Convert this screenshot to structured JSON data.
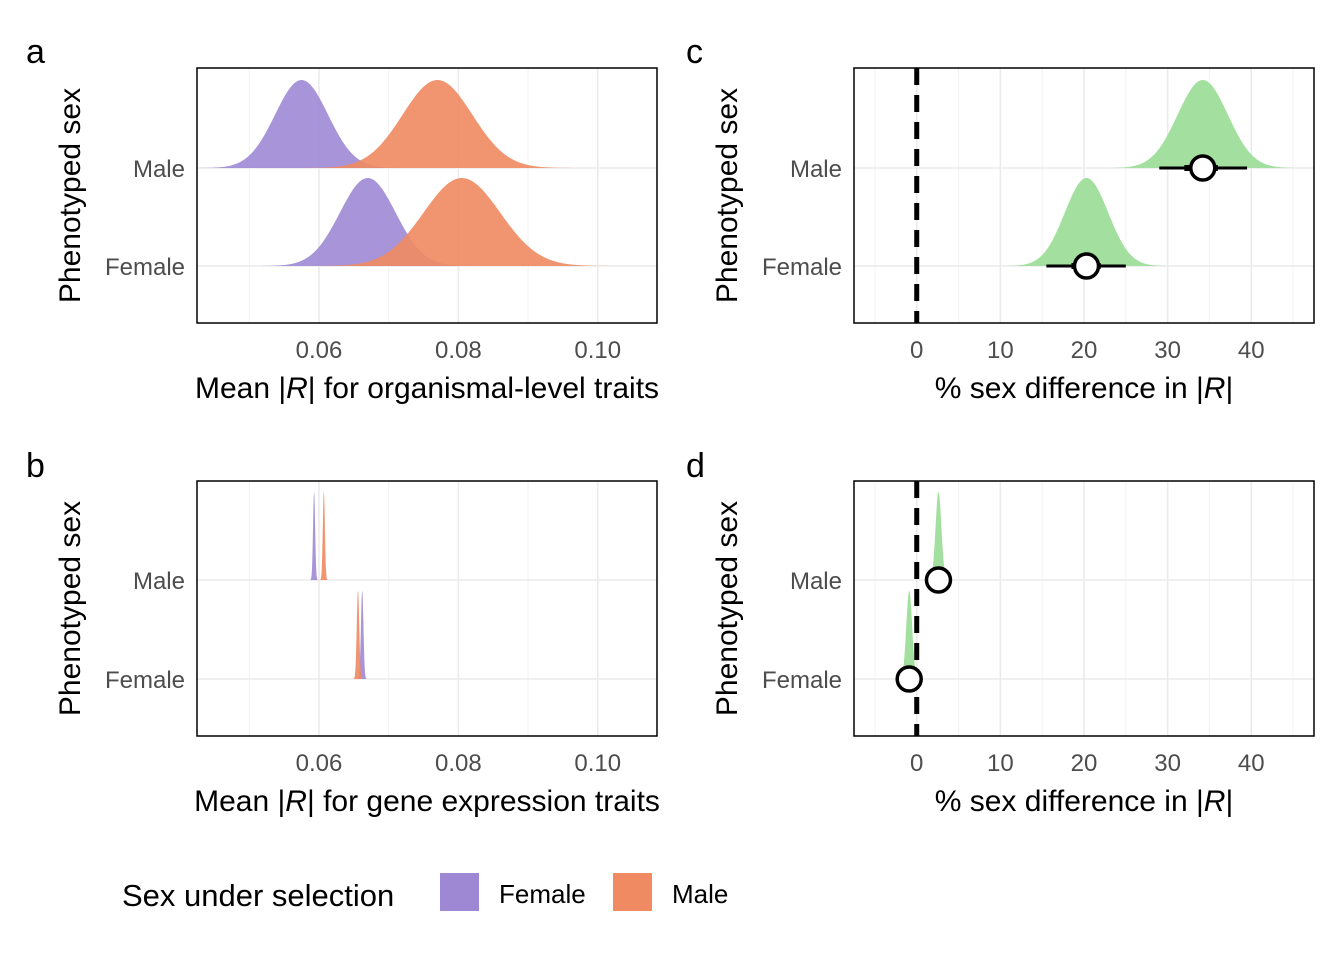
{
  "figure": {
    "legend": {
      "title": "Sex under selection",
      "items": [
        {
          "label": "Female",
          "color": "#9e88d4"
        },
        {
          "label": "Male",
          "color": "#f08a62"
        }
      ]
    }
  },
  "chart_data": [
    {
      "panel": "a",
      "type": "density",
      "ylabel": "Phenotyped sex",
      "xlabel_parts": [
        "Mean |",
        "R",
        "| for organismal-level traits"
      ],
      "xlim": [
        0.0425,
        0.1085
      ],
      "xticks": [
        0.06,
        0.08,
        0.1
      ],
      "xtick_labels": [
        "0.06",
        "0.08",
        "0.10"
      ],
      "categories": [
        "Male",
        "Female"
      ],
      "series": [
        {
          "name": "Female",
          "color": "#9e88d4",
          "distributions": [
            {
              "row": "Male",
              "mean": 0.0575,
              "sd": 0.0038
            },
            {
              "row": "Female",
              "mean": 0.067,
              "sd": 0.004
            }
          ]
        },
        {
          "name": "Male",
          "color": "#f08a62",
          "distributions": [
            {
              "row": "Male",
              "mean": 0.077,
              "sd": 0.005
            },
            {
              "row": "Female",
              "mean": 0.0805,
              "sd": 0.0055
            }
          ]
        }
      ]
    },
    {
      "panel": "b",
      "type": "density",
      "ylabel": "Phenotyped sex",
      "xlabel_parts": [
        "Mean |",
        "R",
        "| for gene expression traits"
      ],
      "xlim": [
        0.0425,
        0.1085
      ],
      "xticks": [
        0.06,
        0.08,
        0.1
      ],
      "xtick_labels": [
        "0.06",
        "0.08",
        "0.10"
      ],
      "categories": [
        "Male",
        "Female"
      ],
      "series": [
        {
          "name": "Female",
          "color": "#9e88d4",
          "distributions": [
            {
              "row": "Male",
              "mean": 0.0593,
              "sd": 0.00015
            },
            {
              "row": "Female",
              "mean": 0.0662,
              "sd": 0.00018
            }
          ]
        },
        {
          "name": "Male",
          "color": "#f08a62",
          "distributions": [
            {
              "row": "Male",
              "mean": 0.0607,
              "sd": 0.00015
            },
            {
              "row": "Female",
              "mean": 0.0656,
              "sd": 0.00018
            }
          ]
        }
      ]
    },
    {
      "panel": "c",
      "type": "halfeye",
      "ylabel": "Phenotyped sex",
      "xlabel_parts": [
        "% sex difference in |",
        "R",
        "|"
      ],
      "xlim": [
        -7.5,
        47.5
      ],
      "xticks": [
        0,
        10,
        20,
        30,
        40
      ],
      "xtick_labels": [
        "0",
        "10",
        "20",
        "30",
        "40"
      ],
      "reference_line": 0,
      "color": "#a3e09f",
      "categories": [
        "Male",
        "Female"
      ],
      "points": [
        {
          "row": "Male",
          "median": 34.2,
          "sd": 3.0,
          "ci66": [
            32.0,
            36.0
          ],
          "ci95": [
            29.0,
            39.5
          ]
        },
        {
          "row": "Female",
          "median": 20.3,
          "sd": 2.6,
          "ci66": [
            18.5,
            22.0
          ],
          "ci95": [
            15.5,
            25.0
          ]
        }
      ]
    },
    {
      "panel": "d",
      "type": "halfeye",
      "ylabel": "Phenotyped sex",
      "xlabel_parts": [
        "% sex difference in |",
        "R",
        "|"
      ],
      "xlim": [
        -7.5,
        47.5
      ],
      "xticks": [
        0,
        10,
        20,
        30,
        40
      ],
      "xtick_labels": [
        "0",
        "10",
        "20",
        "30",
        "40"
      ],
      "reference_line": 0,
      "color": "#a3e09f",
      "categories": [
        "Male",
        "Female"
      ],
      "points": [
        {
          "row": "Male",
          "median": 2.6,
          "sd": 0.35,
          "ci66": [
            2.3,
            2.9
          ],
          "ci95": [
            1.9,
            3.3
          ]
        },
        {
          "row": "Female",
          "median": -0.9,
          "sd": 0.35,
          "ci66": [
            -1.2,
            -0.6
          ],
          "ci95": [
            -1.6,
            -0.2
          ]
        }
      ]
    }
  ]
}
